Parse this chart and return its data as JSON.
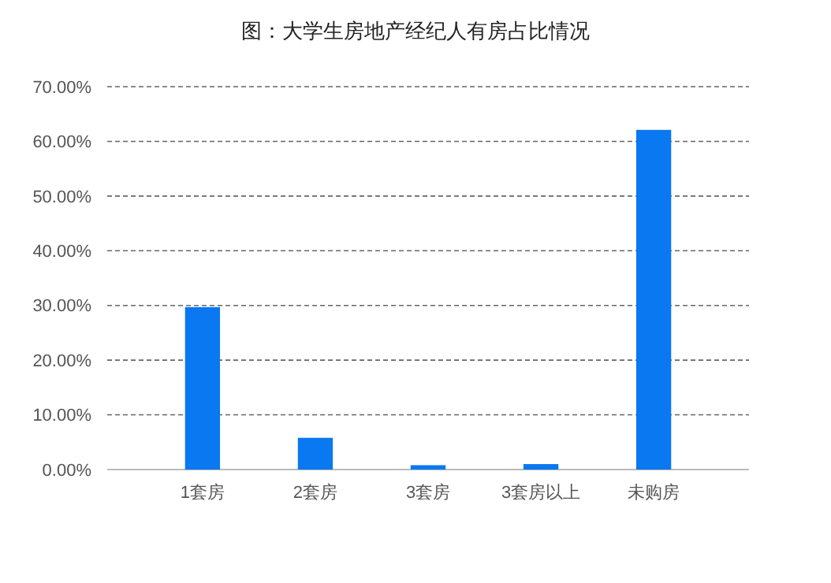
{
  "chart_data": {
    "type": "bar",
    "title": "图：大学生房地产经纪人有房占比情况",
    "categories": [
      "1套房",
      "2套房",
      "3套房",
      "3套房以上",
      "未购房"
    ],
    "values": [
      29.7,
      5.8,
      0.8,
      1.0,
      62.1
    ],
    "color": "#0a78f0",
    "ylim": [
      0,
      70
    ],
    "yticks": [
      {
        "value": 0,
        "label": "0.00%"
      },
      {
        "value": 10,
        "label": "10.00%"
      },
      {
        "value": 20,
        "label": "20.00%"
      },
      {
        "value": 30,
        "label": "30.00%"
      },
      {
        "value": 40,
        "label": "40.00%"
      },
      {
        "value": 50,
        "label": "50.00%"
      },
      {
        "value": 60,
        "label": "60.00%"
      },
      {
        "value": 70,
        "label": "70.00%"
      }
    ],
    "grid": "y"
  }
}
